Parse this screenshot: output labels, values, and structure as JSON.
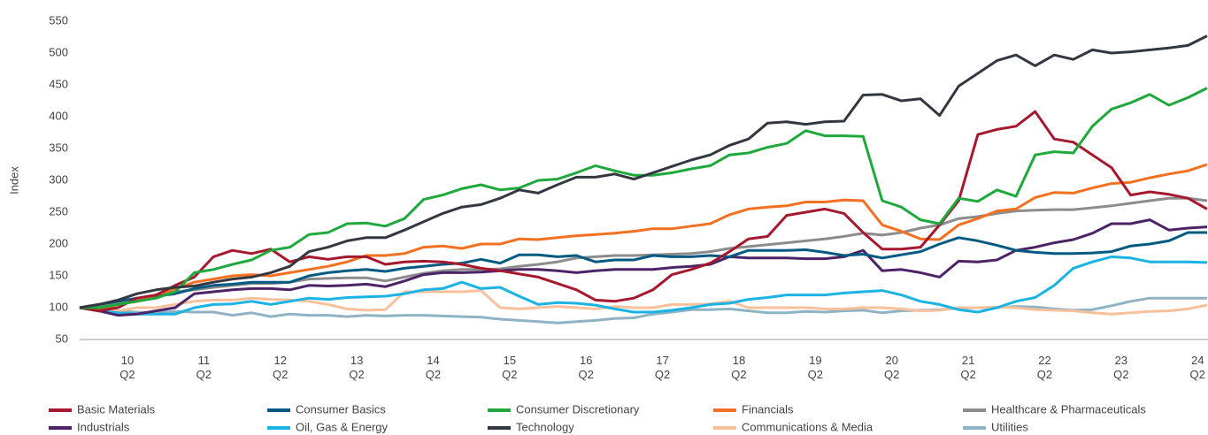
{
  "chart_data": {
    "type": "line",
    "y_label": "Index",
    "categories": [
      null,
      null,
      "10\nQ2",
      null,
      null,
      null,
      "11\nQ2",
      null,
      null,
      null,
      "12\nQ2",
      null,
      null,
      null,
      "13\nQ2",
      null,
      null,
      null,
      "14\nQ2",
      null,
      null,
      null,
      "15\nQ2",
      null,
      null,
      null,
      "16\nQ2",
      null,
      null,
      null,
      "17\nQ2",
      null,
      null,
      null,
      "18\nQ2",
      null,
      null,
      null,
      "19\nQ2",
      null,
      null,
      null,
      "20\nQ2",
      null,
      null,
      null,
      "21\nQ2",
      null,
      null,
      null,
      "22\nQ2",
      null,
      null,
      null,
      "23\nQ2",
      null,
      null,
      null,
      "24\nQ2",
      null
    ],
    "ylim": [
      50,
      550
    ],
    "yticks": [
      50,
      100,
      150,
      200,
      250,
      300,
      350,
      400,
      450,
      500,
      550
    ],
    "grid": false,
    "series": [
      {
        "name": "Basic Materials",
        "color": "#a5182e",
        "values": [
          100,
          95,
          100,
          115,
          120,
          135,
          148,
          180,
          190,
          185,
          192,
          172,
          180,
          176,
          180,
          180,
          168,
          172,
          173,
          172,
          168,
          162,
          158,
          153,
          148,
          138,
          128,
          112,
          110,
          115,
          128,
          152,
          160,
          170,
          188,
          208,
          212,
          245,
          250,
          255,
          248,
          218,
          192,
          192,
          195,
          230,
          268,
          372,
          380,
          385,
          408,
          365,
          360,
          340,
          320,
          277,
          282,
          278,
          272,
          255
        ]
      },
      {
        "name": "Consumer Basics",
        "color": "#005a82",
        "values": [
          100,
          105,
          110,
          115,
          118,
          122,
          130,
          135,
          137,
          140,
          140,
          140,
          150,
          155,
          158,
          160,
          157,
          162,
          165,
          168,
          170,
          176,
          170,
          183,
          183,
          180,
          182,
          172,
          175,
          175,
          182,
          180,
          180,
          182,
          180,
          190,
          190,
          190,
          191,
          187,
          182,
          184,
          178,
          183,
          188,
          200,
          210,
          205,
          198,
          190,
          187,
          185,
          185,
          186,
          188,
          197,
          200,
          205,
          218,
          218
        ]
      },
      {
        "name": "Consumer Discretionary",
        "color": "#1fa83c",
        "values": [
          100,
          100,
          105,
          110,
          115,
          125,
          155,
          160,
          168,
          175,
          190,
          195,
          215,
          218,
          232,
          233,
          228,
          240,
          270,
          277,
          287,
          293,
          285,
          288,
          300,
          302,
          312,
          323,
          315,
          308,
          308,
          312,
          318,
          323,
          340,
          343,
          352,
          358,
          378,
          370,
          370,
          369,
          268,
          258,
          238,
          232,
          272,
          267,
          285,
          275,
          340,
          345,
          343,
          385,
          412,
          422,
          435,
          418,
          430,
          445
        ]
      },
      {
        "name": "Financials",
        "color": "#f37021",
        "values": [
          100,
          97,
          105,
          110,
          120,
          130,
          140,
          145,
          150,
          152,
          150,
          155,
          160,
          165,
          172,
          182,
          182,
          185,
          195,
          197,
          193,
          200,
          200,
          208,
          207,
          210,
          213,
          215,
          217,
          220,
          224,
          224,
          228,
          232,
          246,
          255,
          258,
          260,
          266,
          266,
          269,
          268,
          230,
          220,
          208,
          207,
          230,
          240,
          252,
          255,
          273,
          281,
          280,
          288,
          295,
          297,
          304,
          310,
          315,
          325
        ]
      },
      {
        "name": "Healthcare & Pharmaceuticals",
        "color": "#8c8c8c",
        "values": [
          100,
          104,
          108,
          110,
          118,
          125,
          128,
          132,
          135,
          138,
          138,
          140,
          145,
          146,
          147,
          147,
          142,
          148,
          154,
          158,
          160,
          160,
          161,
          165,
          168,
          172,
          178,
          180,
          182,
          182,
          183,
          184,
          185,
          188,
          193,
          196,
          199,
          202,
          205,
          208,
          212,
          217,
          214,
          218,
          225,
          230,
          240,
          243,
          248,
          252,
          253,
          254,
          254,
          257,
          260,
          264,
          268,
          272,
          272,
          268
        ]
      },
      {
        "name": "Industrials",
        "color": "#4b2366",
        "values": [
          100,
          95,
          88,
          90,
          95,
          100,
          122,
          125,
          128,
          130,
          130,
          128,
          135,
          134,
          135,
          137,
          133,
          142,
          152,
          155,
          155,
          156,
          158,
          160,
          160,
          158,
          155,
          158,
          160,
          160,
          160,
          163,
          165,
          168,
          180,
          178,
          178,
          178,
          177,
          177,
          180,
          190,
          158,
          160,
          155,
          148,
          173,
          172,
          175,
          190,
          195,
          202,
          207,
          217,
          232,
          232,
          238,
          222,
          225,
          227
        ]
      },
      {
        "name": "Oil, Gas & Energy",
        "color": "#1bb3e4",
        "values": [
          100,
          95,
          92,
          90,
          90,
          90,
          100,
          105,
          106,
          110,
          105,
          110,
          115,
          113,
          116,
          117,
          118,
          122,
          128,
          130,
          140,
          130,
          132,
          118,
          105,
          108,
          107,
          104,
          98,
          93,
          93,
          96,
          100,
          105,
          107,
          113,
          116,
          120,
          120,
          120,
          123,
          125,
          127,
          120,
          110,
          105,
          97,
          93,
          100,
          110,
          116,
          135,
          162,
          172,
          180,
          178,
          172,
          172,
          172,
          171
        ]
      },
      {
        "name": "Technology",
        "color": "#333840",
        "values": [
          100,
          105,
          112,
          122,
          128,
          132,
          134,
          140,
          145,
          148,
          155,
          165,
          188,
          195,
          205,
          210,
          210,
          222,
          235,
          248,
          258,
          262,
          272,
          285,
          280,
          293,
          305,
          305,
          310,
          302,
          312,
          322,
          332,
          340,
          355,
          365,
          390,
          392,
          388,
          392,
          393,
          434,
          435,
          425,
          428,
          402,
          448,
          468,
          488,
          497,
          480,
          497,
          490,
          505,
          500,
          502,
          505,
          508,
          512,
          527
        ]
      },
      {
        "name": "Communications & Media",
        "color": "#f8c19b",
        "values": [
          100,
          97,
          95,
          100,
          100,
          105,
          110,
          112,
          112,
          115,
          113,
          112,
          110,
          105,
          98,
          96,
          97,
          125,
          125,
          125,
          125,
          127,
          100,
          98,
          100,
          102,
          100,
          98,
          102,
          100,
          100,
          105,
          105,
          106,
          110,
          100,
          100,
          100,
          100,
          98,
          98,
          100,
          100,
          98,
          95,
          96,
          100,
          100,
          101,
          100,
          97,
          96,
          95,
          92,
          90,
          92,
          94,
          95,
          98,
          104
        ]
      },
      {
        "name": "Utilities",
        "color": "#8fb3c4",
        "values": [
          100,
          97,
          95,
          93,
          92,
          94,
          93,
          93,
          88,
          92,
          86,
          90,
          88,
          88,
          86,
          88,
          87,
          88,
          88,
          87,
          86,
          85,
          82,
          80,
          78,
          76,
          78,
          80,
          83,
          84,
          90,
          93,
          97,
          97,
          98,
          95,
          92,
          92,
          94,
          93,
          95,
          96,
          92,
          95,
          96,
          97,
          99,
          100,
          100,
          102,
          101,
          98,
          96,
          97,
          103,
          110,
          115,
          115,
          115,
          115
        ]
      }
    ]
  }
}
